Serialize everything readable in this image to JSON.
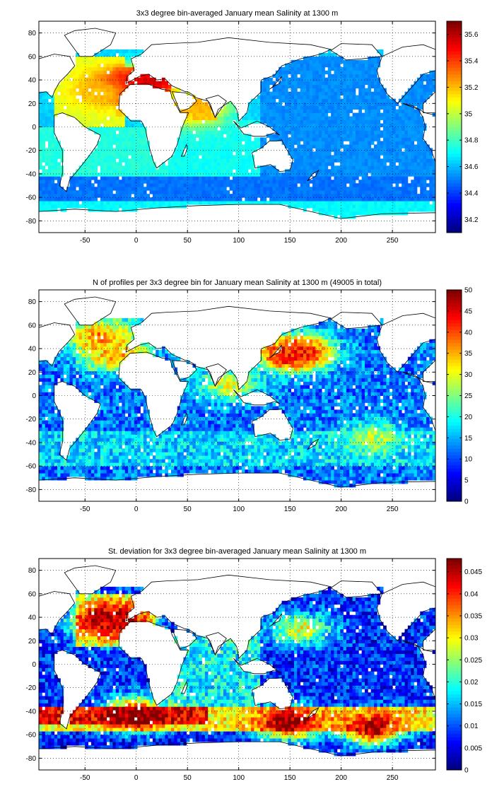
{
  "chart_data": [
    {
      "type": "heatmap",
      "title": "3x3 degree bin-averaged January mean Salinity at 1300 m",
      "xlabel": "",
      "ylabel": "",
      "xlim": [
        -95,
        292
      ],
      "ylim": [
        -90,
        90
      ],
      "xticks": [
        -50,
        0,
        50,
        100,
        150,
        200,
        250
      ],
      "yticks": [
        -80,
        -60,
        -40,
        -20,
        0,
        20,
        40,
        60,
        80
      ],
      "grid": true,
      "colorbar": {
        "min": 34.1,
        "max": 35.7,
        "ticks": [
          34.2,
          34.4,
          34.6,
          34.8,
          35,
          35.2,
          35.4,
          35.6
        ]
      },
      "background_level": 34.62,
      "regions": [
        {
          "lon": [
            -80,
            -10
          ],
          "lat": [
            0,
            60
          ],
          "value": 35.05
        },
        {
          "lon": [
            -20,
            35
          ],
          "lat": [
            10,
            50
          ],
          "value": 35.15
        },
        {
          "lon": [
            55,
            80
          ],
          "lat": [
            5,
            25
          ],
          "value": 35.1
        },
        {
          "lon": [
            20,
            120
          ],
          "lat": [
            -45,
            5
          ],
          "value": 34.72
        },
        {
          "lon": [
            -95,
            30
          ],
          "lat": [
            -50,
            0
          ],
          "value": 34.75
        },
        {
          "lon": [
            120,
            292
          ],
          "lat": [
            -55,
            60
          ],
          "value": 34.52
        },
        {
          "lon": [
            -95,
            292
          ],
          "lat": [
            -62,
            -42
          ],
          "value": 34.48
        },
        {
          "lon": [
            -95,
            292
          ],
          "lat": [
            -78,
            -62
          ],
          "value": 34.7
        }
      ],
      "hotspots": [
        {
          "lon": -15,
          "lat": 35,
          "value": 35.6
        },
        {
          "lon": 15,
          "lat": 38,
          "value": 35.6
        },
        {
          "lon": -35,
          "lat": 30,
          "value": 35.2
        },
        {
          "lon": 62,
          "lat": 18,
          "value": 35.25
        },
        {
          "lon": 45,
          "lat": 15,
          "value": 35.2
        }
      ]
    },
    {
      "type": "heatmap",
      "title": "N of profiles per 3x3 degree bin for January mean Salinity at 1300 m (49005 in total)",
      "xlabel": "",
      "ylabel": "",
      "xlim": [
        -95,
        292
      ],
      "ylim": [
        -90,
        90
      ],
      "xticks": [
        -50,
        0,
        50,
        100,
        150,
        200,
        250
      ],
      "yticks": [
        -80,
        -60,
        -40,
        -20,
        0,
        20,
        40,
        60,
        80
      ],
      "grid": true,
      "colorbar": {
        "min": 0,
        "max": 50,
        "ticks": [
          0,
          5,
          10,
          15,
          20,
          25,
          30,
          35,
          40,
          45,
          50
        ]
      },
      "background_level": 12,
      "regions": [
        {
          "lon": [
            -95,
            292
          ],
          "lat": [
            -60,
            -30
          ],
          "value": 17
        },
        {
          "lon": [
            -60,
            20
          ],
          "lat": [
            20,
            65
          ],
          "value": 18
        }
      ],
      "hotspots": [
        {
          "lon": 150,
          "lat": 35,
          "value": 48
        },
        {
          "lon": 160,
          "lat": 38,
          "value": 42
        },
        {
          "lon": -35,
          "lat": 50,
          "value": 38
        },
        {
          "lon": -20,
          "lat": 35,
          "value": 35
        },
        {
          "lon": 90,
          "lat": 10,
          "value": 30
        },
        {
          "lon": 230,
          "lat": -35,
          "value": 28
        }
      ]
    },
    {
      "type": "heatmap",
      "title": "St. deviation for 3x3 degree bin-averaged January mean Salinity at 1300 m",
      "xlabel": "",
      "ylabel": "",
      "xlim": [
        -95,
        292
      ],
      "ylim": [
        -90,
        90
      ],
      "xticks": [
        -50,
        0,
        50,
        100,
        150,
        200,
        250
      ],
      "yticks": [
        -80,
        -60,
        -40,
        -20,
        0,
        20,
        40,
        60,
        80
      ],
      "grid": true,
      "colorbar": {
        "min": 0,
        "max": 0.048,
        "ticks": [
          0,
          0.005,
          0.01,
          0.015,
          0.02,
          0.025,
          0.03,
          0.035,
          0.04,
          0.045
        ]
      },
      "background_level": 0.008,
      "regions": [
        {
          "lon": [
            -95,
            292
          ],
          "lat": [
            -58,
            -35
          ],
          "value": 0.03
        },
        {
          "lon": [
            -95,
            70
          ],
          "lat": [
            -50,
            -35
          ],
          "value": 0.042
        },
        {
          "lon": [
            -60,
            20
          ],
          "lat": [
            15,
            60
          ],
          "value": 0.025
        },
        {
          "lon": [
            30,
            120
          ],
          "lat": [
            -35,
            25
          ],
          "value": 0.018
        },
        {
          "lon": [
            -95,
            292
          ],
          "lat": [
            -78,
            -62
          ],
          "value": 0.006
        }
      ],
      "hotspots": [
        {
          "lon": -20,
          "lat": 40,
          "value": 0.048
        },
        {
          "lon": -30,
          "lat": 35,
          "value": 0.045
        },
        {
          "lon": 0,
          "lat": -42,
          "value": 0.048
        },
        {
          "lon": 150,
          "lat": -50,
          "value": 0.048
        },
        {
          "lon": 230,
          "lat": -55,
          "value": 0.046
        },
        {
          "lon": 160,
          "lat": 30,
          "value": 0.03
        }
      ]
    }
  ]
}
